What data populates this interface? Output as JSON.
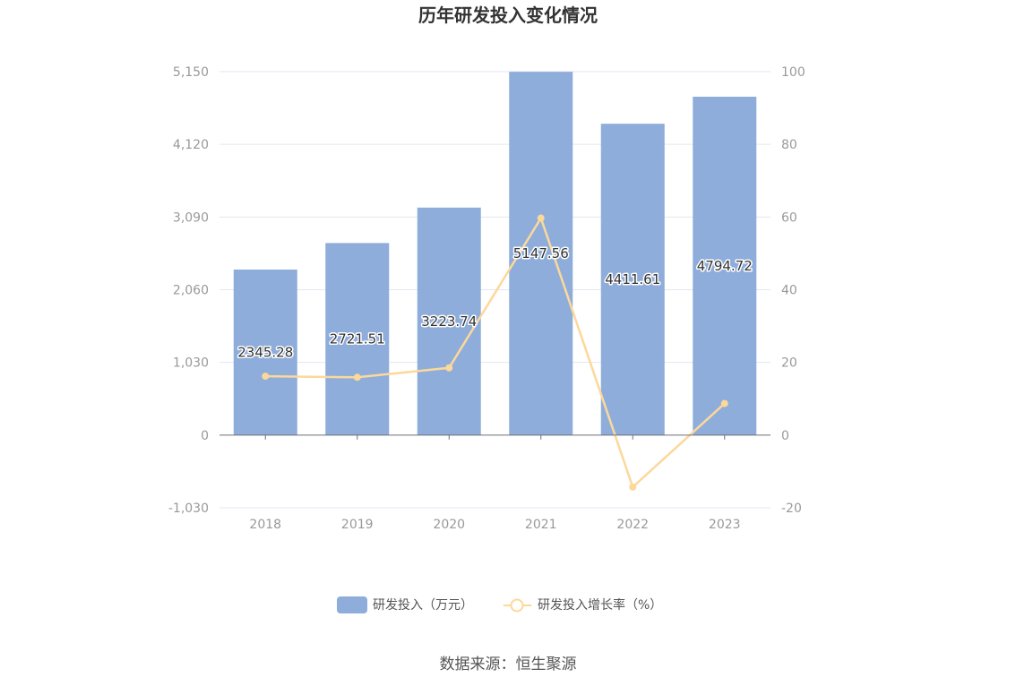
{
  "chart_data": {
    "type": "bar",
    "title": "历年研发投入变化情况",
    "categories": [
      "2018",
      "2019",
      "2020",
      "2021",
      "2022",
      "2023"
    ],
    "series": [
      {
        "name": "研发投入（万元）",
        "type": "bar",
        "axis": "left",
        "color": "#8eaddb",
        "values": [
          2345.28,
          2721.51,
          3223.74,
          5147.56,
          4411.61,
          4794.72
        ],
        "labels": [
          "2345.28",
          "2721.51",
          "3223.74",
          "5147.56",
          "4411.61",
          "4794.72"
        ]
      },
      {
        "name": "研发投入增长率（%）",
        "type": "line",
        "axis": "right",
        "color": "#fcd89a",
        "values": [
          16.2,
          15.9,
          18.5,
          59.7,
          -14.3,
          8.7
        ]
      }
    ],
    "y_left": {
      "ylim": [
        -1030,
        5150
      ],
      "ticks": [
        -1030,
        0,
        1030,
        2060,
        3090,
        4120,
        5150
      ],
      "tick_labels": [
        "-1,030",
        "0",
        "1,030",
        "2,060",
        "3,090",
        "4,120",
        "5,150"
      ]
    },
    "y_right": {
      "ylim": [
        -20,
        100
      ],
      "ticks": [
        -20,
        0,
        20,
        40,
        60,
        80,
        100
      ],
      "tick_labels": [
        "-20",
        "0",
        "20",
        "40",
        "60",
        "80",
        "100"
      ]
    },
    "grid": true,
    "legend_position": "bottom-center"
  },
  "source_text": "数据来源：恒生聚源"
}
